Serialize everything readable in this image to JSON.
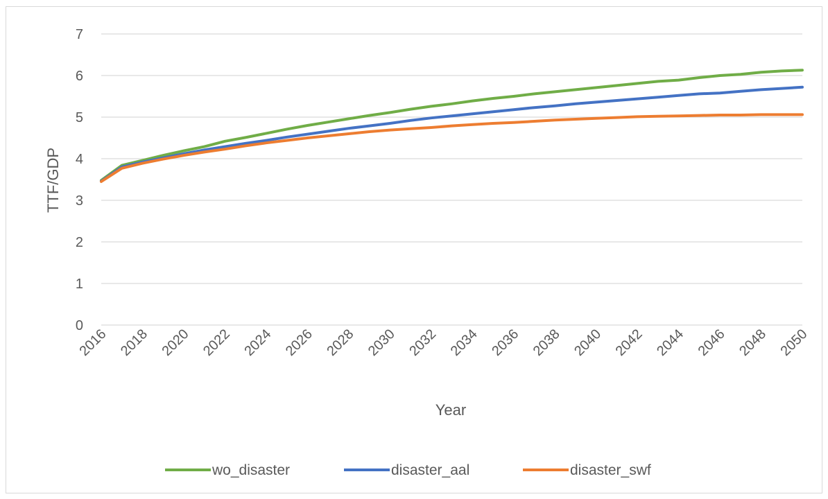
{
  "chart_data": {
    "type": "line",
    "title": "",
    "xlabel": "Year",
    "ylabel": "TTF/GDP",
    "ylim": [
      0,
      7
    ],
    "yticks": [
      0,
      1,
      2,
      3,
      4,
      5,
      6,
      7
    ],
    "xlim": [
      2016,
      2050
    ],
    "xticks": [
      2016,
      2018,
      2020,
      2022,
      2024,
      2026,
      2028,
      2030,
      2032,
      2034,
      2036,
      2038,
      2040,
      2042,
      2044,
      2046,
      2048,
      2050
    ],
    "grid": "horizontal",
    "legend_position": "bottom",
    "x": [
      2016,
      2017,
      2018,
      2019,
      2020,
      2021,
      2022,
      2023,
      2024,
      2025,
      2026,
      2027,
      2028,
      2029,
      2030,
      2031,
      2032,
      2033,
      2034,
      2035,
      2036,
      2037,
      2038,
      2039,
      2040,
      2041,
      2042,
      2043,
      2044,
      2045,
      2046,
      2047,
      2048,
      2049,
      2050
    ],
    "series": [
      {
        "name": "wo_disaster",
        "color": "#70ad47",
        "values": [
          3.48,
          3.84,
          3.96,
          4.08,
          4.19,
          4.29,
          4.42,
          4.51,
          4.61,
          4.71,
          4.8,
          4.88,
          4.96,
          5.04,
          5.11,
          5.19,
          5.26,
          5.32,
          5.39,
          5.45,
          5.5,
          5.56,
          5.61,
          5.66,
          5.71,
          5.76,
          5.81,
          5.86,
          5.89,
          5.95,
          6.0,
          6.03,
          6.08,
          6.11,
          6.13
        ]
      },
      {
        "name": "disaster_aal",
        "color": "#4472c4",
        "values": [
          3.46,
          3.8,
          3.92,
          4.02,
          4.12,
          4.21,
          4.29,
          4.37,
          4.44,
          4.52,
          4.59,
          4.66,
          4.73,
          4.79,
          4.85,
          4.92,
          4.98,
          5.03,
          5.08,
          5.13,
          5.18,
          5.23,
          5.27,
          5.32,
          5.36,
          5.4,
          5.44,
          5.48,
          5.52,
          5.56,
          5.58,
          5.62,
          5.66,
          5.69,
          5.72
        ]
      },
      {
        "name": "disaster_swf",
        "color": "#ed7d31",
        "values": [
          3.45,
          3.77,
          3.89,
          3.99,
          4.08,
          4.16,
          4.23,
          4.31,
          4.38,
          4.44,
          4.5,
          4.55,
          4.6,
          4.65,
          4.69,
          4.72,
          4.75,
          4.79,
          4.82,
          4.85,
          4.87,
          4.9,
          4.93,
          4.95,
          4.97,
          4.99,
          5.01,
          5.02,
          5.03,
          5.04,
          5.05,
          5.05,
          5.06,
          5.06,
          5.06
        ]
      }
    ]
  }
}
